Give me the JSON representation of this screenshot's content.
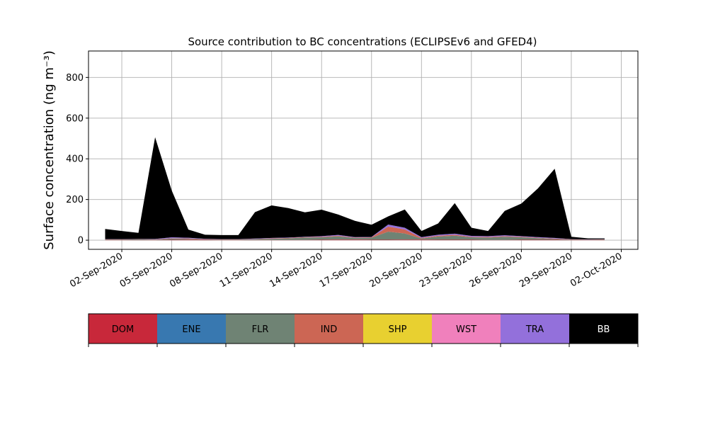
{
  "chart_data": {
    "type": "area",
    "title": "Source contribution to BC concentrations (ECLIPSEv6 and GFED4)",
    "ylabel": "Surface concentration (ng m⁻³)",
    "xlabel": "",
    "ylim": [
      -45,
      930
    ],
    "yticks": [
      0,
      200,
      400,
      600,
      800
    ],
    "xlim": [
      "2020-08-31",
      "2020-10-03"
    ],
    "xticks": [
      "02-Sep-2020",
      "05-Sep-2020",
      "08-Sep-2020",
      "11-Sep-2020",
      "14-Sep-2020",
      "17-Sep-2020",
      "20-Sep-2020",
      "23-Sep-2020",
      "26-Sep-2020",
      "29-Sep-2020",
      "02-Oct-2020"
    ],
    "grid": true,
    "legend": {
      "placement": "bottom colorbar"
    },
    "series_order": [
      "DOM",
      "ENE",
      "FLR",
      "IND",
      "SHP",
      "WST",
      "TRA",
      "BB"
    ],
    "x": [
      "2020-09-01",
      "2020-09-02",
      "2020-09-03",
      "2020-09-04",
      "2020-09-05",
      "2020-09-06",
      "2020-09-07",
      "2020-09-08",
      "2020-09-09",
      "2020-09-10",
      "2020-09-11",
      "2020-09-12",
      "2020-09-13",
      "2020-09-14",
      "2020-09-15",
      "2020-09-16",
      "2020-09-17",
      "2020-09-18",
      "2020-09-19",
      "2020-09-20",
      "2020-09-21",
      "2020-09-22",
      "2020-09-23",
      "2020-09-24",
      "2020-09-25",
      "2020-09-26",
      "2020-09-27",
      "2020-09-28",
      "2020-09-29",
      "2020-09-30",
      "2020-10-01"
    ],
    "series": [
      {
        "name": "DOM",
        "color": "#c8283a",
        "values": [
          1,
          1,
          1,
          1,
          2,
          3,
          2,
          1,
          1,
          1,
          1,
          1,
          1,
          2,
          3,
          3,
          2,
          2,
          3,
          3,
          2,
          2,
          2,
          1,
          1,
          2,
          2,
          2,
          1,
          1,
          1
        ]
      },
      {
        "name": "ENE",
        "color": "#3878b0",
        "values": [
          0,
          0,
          0,
          0,
          0,
          0,
          0,
          0,
          0,
          0,
          0,
          0,
          0,
          0,
          0,
          0,
          0,
          0,
          0,
          0,
          0,
          0,
          0,
          0,
          0,
          0,
          0,
          0,
          0,
          0,
          0
        ]
      },
      {
        "name": "FLR",
        "color": "#6f8374",
        "values": [
          2,
          2,
          3,
          2,
          6,
          4,
          2,
          2,
          2,
          4,
          6,
          8,
          12,
          12,
          16,
          8,
          10,
          40,
          30,
          5,
          16,
          20,
          12,
          12,
          16,
          12,
          8,
          4,
          2,
          1,
          2
        ]
      },
      {
        "name": "IND",
        "color": "#cc6654",
        "values": [
          1,
          1,
          1,
          1,
          2,
          2,
          1,
          1,
          1,
          1,
          2,
          2,
          2,
          3,
          3,
          2,
          2,
          25,
          20,
          3,
          4,
          5,
          3,
          3,
          3,
          3,
          2,
          2,
          1,
          1,
          1
        ]
      },
      {
        "name": "SHP",
        "color": "#e8d030",
        "values": [
          0,
          0,
          0,
          0,
          0,
          0,
          0,
          0,
          0,
          0,
          0,
          0,
          0,
          0,
          0,
          0,
          0,
          0,
          0,
          0,
          0,
          0,
          0,
          0,
          0,
          0,
          0,
          0,
          0,
          0,
          0
        ]
      },
      {
        "name": "WST",
        "color": "#f080bc",
        "values": [
          0,
          0,
          0,
          0,
          0,
          0,
          0,
          0,
          0,
          0,
          0,
          0,
          0,
          0,
          0,
          0,
          0,
          0,
          0,
          0,
          0,
          0,
          0,
          0,
          0,
          0,
          0,
          0,
          0,
          0,
          0
        ]
      },
      {
        "name": "TRA",
        "color": "#9370db",
        "values": [
          1,
          1,
          1,
          2,
          4,
          3,
          2,
          1,
          1,
          2,
          2,
          2,
          2,
          3,
          4,
          2,
          2,
          10,
          8,
          4,
          5,
          5,
          4,
          4,
          4,
          3,
          3,
          3,
          1,
          1,
          1
        ]
      },
      {
        "name": "BB",
        "color": "#000000",
        "values": [
          50,
          40,
          30,
          500,
          230,
          40,
          20,
          20,
          20,
          130,
          160,
          145,
          120,
          130,
          100,
          80,
          60,
          40,
          90,
          30,
          55,
          150,
          40,
          25,
          120,
          160,
          240,
          340,
          12,
          5,
          4
        ]
      }
    ],
    "colorbar": {
      "labels": [
        "DOM",
        "ENE",
        "FLR",
        "IND",
        "SHP",
        "WST",
        "TRA",
        "BB"
      ],
      "colors": [
        "#c8283a",
        "#3878b0",
        "#6f8374",
        "#cc6654",
        "#e8d030",
        "#f080bc",
        "#9370db",
        "#000000"
      ],
      "text_colors": [
        "#000000",
        "#000000",
        "#000000",
        "#000000",
        "#000000",
        "#000000",
        "#000000",
        "#ffffff"
      ]
    }
  }
}
